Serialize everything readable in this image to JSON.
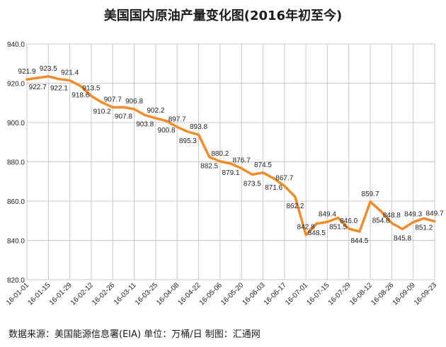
{
  "title": "美国国内原油产量变化图(2016年初至今)",
  "source_note": "数据来源：美国能源信息署(EIA)   单位：万桶/日   制图：汇通网",
  "colors": {
    "line": "#f28c28",
    "grid": "#c8c8c8",
    "axis": "#888888"
  },
  "chart_data": {
    "type": "line",
    "title": "美国国内原油产量变化图(2016年初至今)",
    "xlabel": "",
    "ylabel": "",
    "ylim": [
      820,
      940
    ],
    "yticks": [
      820.0,
      840.0,
      860.0,
      880.0,
      900.0,
      920.0,
      940.0
    ],
    "grid": true,
    "legend": "none",
    "x": [
      "16-01-01",
      "16-01-08",
      "16-01-15",
      "16-01-22",
      "16-01-29",
      "16-02-05",
      "16-02-12",
      "16-02-19",
      "16-02-26",
      "16-03-04",
      "16-03-11",
      "16-03-18",
      "16-03-25",
      "16-04-01",
      "16-04-08",
      "16-04-15",
      "16-04-22",
      "16-04-29",
      "16-05-06",
      "16-05-13",
      "16-05-20",
      "16-05-27",
      "16-06-03",
      "16-06-10",
      "16-06-17",
      "16-06-24",
      "16-07-01",
      "16-07-08",
      "16-07-15",
      "16-07-22",
      "16-07-29",
      "16-08-05",
      "16-08-12",
      "16-08-19",
      "16-08-26",
      "16-09-02",
      "16-09-09",
      "16-09-16",
      "16-09-23"
    ],
    "xtick_labels": [
      "16-01-01",
      "16-01-15",
      "16-01-29",
      "16-02-12",
      "16-02-26",
      "16-03-11",
      "16-03-25",
      "16-04-08",
      "16-04-22",
      "16-05-06",
      "16-05-20",
      "16-06-03",
      "16-06-17",
      "16-07-01",
      "16-07-15",
      "16-07-29",
      "16-08-12",
      "16-08-26",
      "16-09-09",
      "16-09-23"
    ],
    "series": [
      {
        "values": [
          921.9,
          922.7,
          923.5,
          922.1,
          921.4,
          918.6,
          913.5,
          910.2,
          907.7,
          907.8,
          906.8,
          903.8,
          902.2,
          900.8,
          897.7,
          895.3,
          893.8,
          882.5,
          880.2,
          879.1,
          876.7,
          873.5,
          874.5,
          871.6,
          867.7,
          862.2,
          842.8,
          848.5,
          849.4,
          851.5,
          846.0,
          844.5,
          859.7,
          854.8,
          848.8,
          845.8,
          849.3,
          851.2,
          849.7
        ]
      }
    ]
  }
}
